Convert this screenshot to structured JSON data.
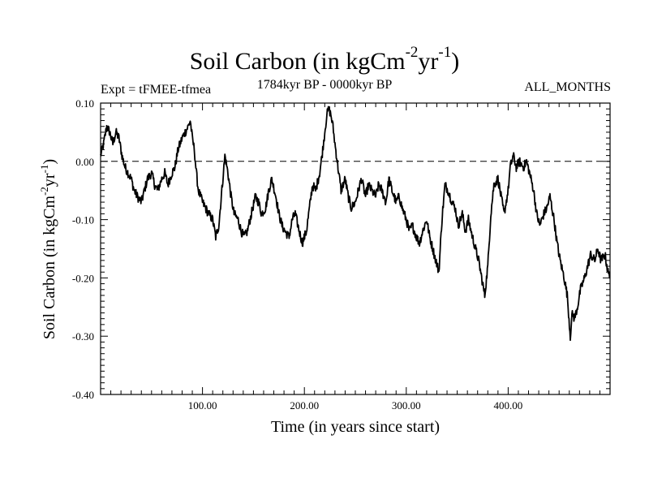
{
  "header": {
    "title_main": "Soil Carbon (in kgCm",
    "title_exp1": "-2",
    "title_unit2": "yr",
    "title_exp2": "-1",
    "title_close": ")",
    "expt": "Expt = tFMEE-tfmea",
    "period": "1784kyr BP - 0000kyr BP",
    "months": "ALL_MONTHS"
  },
  "chart_data": {
    "type": "line",
    "title": "Soil Carbon (in kgCm-2yr-1)",
    "xlabel": "Time (in years since start)",
    "ylabel": "Soil Carbon (in kgCm-2yr-1)",
    "ylabel_parts": {
      "main": "Soil Carbon (in kgCm",
      "exp1": "-2",
      "unit2": "yr",
      "exp2": "-1",
      "close": ")"
    },
    "xlim": [
      0,
      500
    ],
    "ylim": [
      -0.4,
      0.1
    ],
    "x_ticks": [
      100,
      200,
      300,
      400
    ],
    "x_tick_labels": [
      "100.00",
      "200.00",
      "300.00",
      "400.00"
    ],
    "y_ticks": [
      0.1,
      0.0,
      -0.1,
      -0.2,
      -0.3,
      -0.4
    ],
    "y_tick_labels": [
      "0.10",
      "0.00",
      "-0.10",
      "-0.20",
      "-0.30",
      "-0.40"
    ],
    "reference_line": {
      "y": 0.0,
      "style": "dashed"
    },
    "series": [
      {
        "name": "Soil Carbon",
        "x": [
          0,
          3,
          6,
          9,
          12,
          15,
          18,
          21,
          24,
          27,
          30,
          33,
          36,
          40,
          43,
          46,
          50,
          53,
          56,
          60,
          63,
          66,
          70,
          73,
          76,
          80,
          83,
          86,
          88,
          90,
          92,
          94,
          96,
          98,
          100,
          103,
          106,
          110,
          113,
          116,
          120,
          122,
          125,
          128,
          131,
          135,
          138,
          141,
          144,
          148,
          152,
          155,
          158,
          162,
          165,
          168,
          172,
          175,
          178,
          181,
          185,
          188,
          191,
          195,
          198,
          202,
          205,
          208,
          211,
          215,
          218,
          220,
          222,
          224,
          226,
          228,
          230,
          233,
          236,
          240,
          243,
          246,
          250,
          253,
          256,
          260,
          263,
          266,
          270,
          273,
          276,
          280,
          283,
          286,
          290,
          293,
          296,
          300,
          303,
          306,
          310,
          313,
          316,
          320,
          323,
          326,
          329,
          332,
          335,
          338,
          341,
          345,
          348,
          351,
          355,
          358,
          361,
          365,
          368,
          371,
          374,
          377,
          380,
          383,
          386,
          390,
          393,
          396,
          400,
          402,
          405,
          408,
          411,
          415,
          418,
          421,
          425,
          428,
          431,
          435,
          438,
          441,
          445,
          448,
          451,
          455,
          458,
          461,
          463,
          465,
          468,
          471,
          475,
          478,
          481,
          485,
          488,
          491,
          495,
          498,
          500
        ],
        "y": [
          0.01,
          0.03,
          0.06,
          0.05,
          0.03,
          0.05,
          0.04,
          0.01,
          -0.01,
          -0.02,
          -0.03,
          -0.05,
          -0.06,
          -0.07,
          -0.05,
          -0.03,
          -0.02,
          -0.04,
          -0.05,
          -0.03,
          -0.02,
          -0.04,
          -0.02,
          -0.01,
          0.02,
          0.04,
          0.05,
          0.06,
          0.07,
          0.04,
          0.02,
          -0.02,
          -0.05,
          -0.06,
          -0.07,
          -0.08,
          -0.09,
          -0.1,
          -0.13,
          -0.11,
          -0.03,
          0.01,
          -0.02,
          -0.06,
          -0.09,
          -0.1,
          -0.12,
          -0.13,
          -0.12,
          -0.09,
          -0.06,
          -0.07,
          -0.09,
          -0.08,
          -0.05,
          -0.03,
          -0.06,
          -0.09,
          -0.11,
          -0.12,
          -0.13,
          -0.1,
          -0.09,
          -0.12,
          -0.14,
          -0.12,
          -0.08,
          -0.04,
          -0.05,
          -0.02,
          0.02,
          0.05,
          0.08,
          0.09,
          0.08,
          0.06,
          0.03,
          -0.01,
          -0.05,
          -0.03,
          -0.06,
          -0.08,
          -0.07,
          -0.05,
          -0.03,
          -0.06,
          -0.04,
          -0.05,
          -0.06,
          -0.04,
          -0.05,
          -0.07,
          -0.03,
          -0.05,
          -0.07,
          -0.06,
          -0.08,
          -0.1,
          -0.12,
          -0.11,
          -0.13,
          -0.14,
          -0.12,
          -0.1,
          -0.13,
          -0.15,
          -0.17,
          -0.19,
          -0.1,
          -0.04,
          -0.05,
          -0.07,
          -0.08,
          -0.11,
          -0.09,
          -0.12,
          -0.1,
          -0.13,
          -0.15,
          -0.17,
          -0.2,
          -0.23,
          -0.18,
          -0.09,
          -0.04,
          -0.03,
          -0.06,
          -0.09,
          -0.05,
          -0.01,
          0.01,
          -0.01,
          0.0,
          -0.01,
          0.0,
          -0.02,
          -0.05,
          -0.09,
          -0.11,
          -0.09,
          -0.08,
          -0.06,
          -0.1,
          -0.14,
          -0.17,
          -0.2,
          -0.23,
          -0.3,
          -0.26,
          -0.27,
          -0.25,
          -0.22,
          -0.2,
          -0.18,
          -0.16,
          -0.17,
          -0.15,
          -0.17,
          -0.16,
          -0.19,
          -0.2
        ]
      }
    ]
  }
}
